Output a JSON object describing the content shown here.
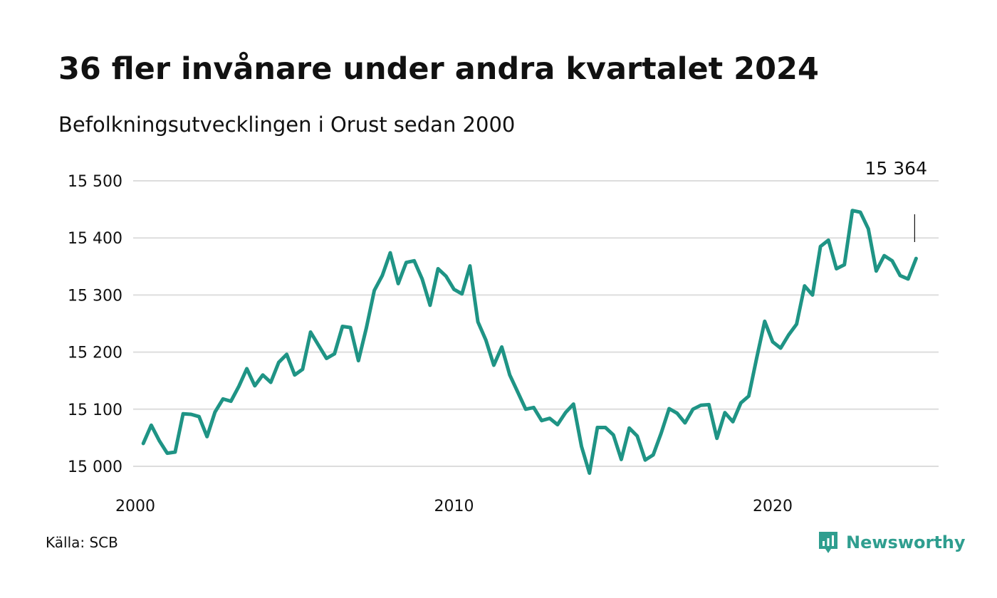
{
  "title": "36 fler invånare under andra kvartalet 2024",
  "subtitle": "Befolkningsutvecklingen i Orust sedan 2000",
  "source": "Källa: SCB",
  "brand": {
    "name": "Newsworthy",
    "icon": "newsworthy-logo-icon",
    "color": "#2f9e8f"
  },
  "chart_data": {
    "type": "line",
    "title": "36 fler invånare under andra kvartalet 2024",
    "subtitle": "Befolkningsutvecklingen i Orust sedan 2000",
    "xlabel": "",
    "ylabel": "",
    "x_ticks": [
      {
        "value": 2000,
        "label": "2000"
      },
      {
        "value": 2010,
        "label": "2010"
      },
      {
        "value": 2020,
        "label": "2020"
      }
    ],
    "y_ticks": [
      {
        "value": 15000,
        "label": "15 000"
      },
      {
        "value": 15100,
        "label": "15 100"
      },
      {
        "value": 15200,
        "label": "15 200"
      },
      {
        "value": 15300,
        "label": "15 300"
      },
      {
        "value": 15400,
        "label": "15 400"
      },
      {
        "value": 15500,
        "label": "15 500"
      }
    ],
    "xlim": [
      2000,
      2024.5
    ],
    "ylim": [
      15000,
      15500
    ],
    "grid": true,
    "line_color": "#1f9485",
    "x_unit": "år (kvartal)",
    "series": [
      {
        "x": [
          2000.25,
          2000.5,
          2000.75,
          2001.0,
          2001.25,
          2001.5,
          2001.75,
          2002.0,
          2002.25,
          2002.5,
          2002.75,
          2003.0,
          2003.25,
          2003.5,
          2003.75,
          2004.0,
          2004.25,
          2004.5,
          2004.75,
          2005.0,
          2005.25,
          2005.5,
          2005.75,
          2006.0,
          2006.25,
          2006.5,
          2006.75,
          2007.0,
          2007.25,
          2007.5,
          2007.75,
          2008.0,
          2008.25,
          2008.5,
          2008.75,
          2009.0,
          2009.25,
          2009.5,
          2009.75,
          2010.0,
          2010.25,
          2010.5,
          2010.75,
          2011.0,
          2011.25,
          2011.5,
          2011.75,
          2012.0,
          2012.25,
          2012.5,
          2012.75,
          2013.0,
          2013.25,
          2013.5,
          2013.75,
          2014.0,
          2014.25,
          2014.5,
          2014.75,
          2015.0,
          2015.25,
          2015.5,
          2015.75,
          2016.0,
          2016.25,
          2016.5,
          2016.75,
          2017.0,
          2017.25,
          2017.5,
          2017.75,
          2018.0,
          2018.25,
          2018.5,
          2018.75,
          2019.0,
          2019.25,
          2019.5,
          2019.75,
          2020.0,
          2020.25,
          2020.5,
          2020.75,
          2021.0,
          2021.25,
          2021.5,
          2021.75,
          2022.0,
          2022.25,
          2022.5,
          2022.75,
          2023.0,
          2023.25,
          2023.5,
          2023.75,
          2024.0,
          2024.25,
          2024.5
        ],
        "values": [
          15040,
          15072,
          15045,
          15023,
          15025,
          15092,
          15091,
          15087,
          15052,
          15095,
          15118,
          15114,
          15140,
          15171,
          15141,
          15160,
          15147,
          15182,
          15196,
          15160,
          15170,
          15235,
          15212,
          15189,
          15197,
          15245,
          15243,
          15185,
          15242,
          15308,
          15334,
          15374,
          15320,
          15357,
          15360,
          15328,
          15282,
          15346,
          15333,
          15310,
          15302,
          15351,
          15253,
          15221,
          15177,
          15209,
          15160,
          15130,
          15100,
          15103,
          15080,
          15084,
          15073,
          15094,
          15109,
          15035,
          14988,
          15068,
          15068,
          15055,
          15012,
          15067,
          15053,
          15011,
          15020,
          15058,
          15101,
          15093,
          15076,
          15100,
          15107,
          15108,
          15049,
          15094,
          15078,
          15111,
          15123,
          15190,
          15254,
          15218,
          15207,
          15230,
          15249,
          15316,
          15300,
          15385,
          15396,
          15346,
          15353,
          15448,
          15445,
          15416,
          15342,
          15369,
          15360,
          15334,
          15328,
          15364
        ]
      }
    ],
    "annotation": {
      "x": 2024.5,
      "value": 15364,
      "label": "15 364"
    }
  }
}
